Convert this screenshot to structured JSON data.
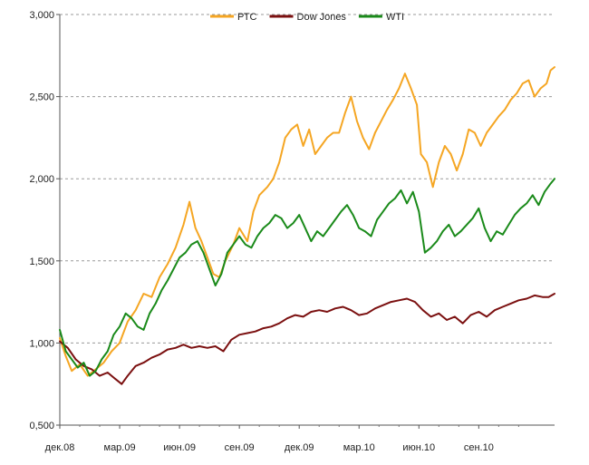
{
  "chart_data": {
    "type": "line",
    "title": "",
    "xlabel": "",
    "ylabel": "",
    "x_tick_labels": [
      "дек.08",
      "мар.09",
      "июн.09",
      "сен.09",
      "дек.09",
      "мар.10",
      "июн.10",
      "сен.10"
    ],
    "y_tick_labels": [
      "0,500",
      "1,000",
      "1,500",
      "2,000",
      "2,500",
      "3,000"
    ],
    "y_ticks": [
      0.5,
      1.0,
      1.5,
      2.0,
      2.5,
      3.0
    ],
    "ylim": [
      0.5,
      3.0
    ],
    "xlim": [
      0,
      24.8
    ],
    "grid": "horizontal-dashed",
    "legend_position": "top-center",
    "series": [
      {
        "name": "РТС",
        "color": "#F5A623",
        "points": [
          [
            0,
            1.03
          ],
          [
            0.3,
            0.92
          ],
          [
            0.6,
            0.83
          ],
          [
            1.0,
            0.87
          ],
          [
            1.4,
            0.8
          ],
          [
            1.8,
            0.84
          ],
          [
            2.2,
            0.88
          ],
          [
            2.6,
            0.95
          ],
          [
            3.0,
            1.0
          ],
          [
            3.4,
            1.13
          ],
          [
            3.8,
            1.2
          ],
          [
            4.2,
            1.3
          ],
          [
            4.6,
            1.28
          ],
          [
            5.0,
            1.4
          ],
          [
            5.4,
            1.48
          ],
          [
            5.8,
            1.58
          ],
          [
            6.2,
            1.72
          ],
          [
            6.5,
            1.86
          ],
          [
            6.8,
            1.7
          ],
          [
            7.1,
            1.62
          ],
          [
            7.4,
            1.52
          ],
          [
            7.7,
            1.42
          ],
          [
            8.0,
            1.4
          ],
          [
            8.3,
            1.5
          ],
          [
            8.7,
            1.6
          ],
          [
            9.0,
            1.7
          ],
          [
            9.4,
            1.62
          ],
          [
            9.7,
            1.8
          ],
          [
            10.0,
            1.9
          ],
          [
            10.4,
            1.95
          ],
          [
            10.7,
            2.0
          ],
          [
            11.0,
            2.1
          ],
          [
            11.3,
            2.25
          ],
          [
            11.6,
            2.3
          ],
          [
            11.9,
            2.33
          ],
          [
            12.2,
            2.2
          ],
          [
            12.5,
            2.3
          ],
          [
            12.8,
            2.15
          ],
          [
            13.1,
            2.2
          ],
          [
            13.4,
            2.25
          ],
          [
            13.7,
            2.28
          ],
          [
            14.0,
            2.28
          ],
          [
            14.3,
            2.4
          ],
          [
            14.6,
            2.5
          ],
          [
            14.9,
            2.35
          ],
          [
            15.2,
            2.25
          ],
          [
            15.5,
            2.18
          ],
          [
            15.8,
            2.28
          ],
          [
            16.1,
            2.35
          ],
          [
            16.4,
            2.42
          ],
          [
            16.7,
            2.48
          ],
          [
            17.0,
            2.55
          ],
          [
            17.3,
            2.64
          ],
          [
            17.6,
            2.55
          ],
          [
            17.9,
            2.45
          ],
          [
            18.1,
            2.15
          ],
          [
            18.4,
            2.1
          ],
          [
            18.7,
            1.95
          ],
          [
            19.0,
            2.1
          ],
          [
            19.3,
            2.2
          ],
          [
            19.6,
            2.15
          ],
          [
            19.9,
            2.05
          ],
          [
            20.2,
            2.15
          ],
          [
            20.5,
            2.3
          ],
          [
            20.8,
            2.28
          ],
          [
            21.1,
            2.2
          ],
          [
            21.4,
            2.28
          ],
          [
            21.7,
            2.33
          ],
          [
            22.0,
            2.38
          ],
          [
            22.3,
            2.42
          ],
          [
            22.6,
            2.48
          ],
          [
            22.9,
            2.52
          ],
          [
            23.2,
            2.58
          ],
          [
            23.5,
            2.6
          ],
          [
            23.8,
            2.5
          ],
          [
            24.1,
            2.55
          ],
          [
            24.4,
            2.58
          ],
          [
            24.6,
            2.66
          ],
          [
            24.8,
            2.68
          ]
        ]
      },
      {
        "name": "Dow Jones",
        "color": "#7B1010",
        "points": [
          [
            0,
            1.01
          ],
          [
            0.4,
            0.97
          ],
          [
            0.8,
            0.9
          ],
          [
            1.2,
            0.86
          ],
          [
            1.6,
            0.84
          ],
          [
            2.0,
            0.8
          ],
          [
            2.4,
            0.82
          ],
          [
            2.8,
            0.78
          ],
          [
            3.1,
            0.75
          ],
          [
            3.4,
            0.8
          ],
          [
            3.8,
            0.86
          ],
          [
            4.2,
            0.88
          ],
          [
            4.6,
            0.91
          ],
          [
            5.0,
            0.93
          ],
          [
            5.4,
            0.96
          ],
          [
            5.8,
            0.97
          ],
          [
            6.2,
            0.99
          ],
          [
            6.6,
            0.97
          ],
          [
            7.0,
            0.98
          ],
          [
            7.4,
            0.97
          ],
          [
            7.8,
            0.98
          ],
          [
            8.2,
            0.95
          ],
          [
            8.6,
            1.02
          ],
          [
            9.0,
            1.05
          ],
          [
            9.4,
            1.06
          ],
          [
            9.8,
            1.07
          ],
          [
            10.2,
            1.09
          ],
          [
            10.6,
            1.1
          ],
          [
            11.0,
            1.12
          ],
          [
            11.4,
            1.15
          ],
          [
            11.8,
            1.17
          ],
          [
            12.2,
            1.16
          ],
          [
            12.6,
            1.19
          ],
          [
            13.0,
            1.2
          ],
          [
            13.4,
            1.19
          ],
          [
            13.8,
            1.21
          ],
          [
            14.2,
            1.22
          ],
          [
            14.6,
            1.2
          ],
          [
            15.0,
            1.17
          ],
          [
            15.4,
            1.18
          ],
          [
            15.8,
            1.21
          ],
          [
            16.2,
            1.23
          ],
          [
            16.6,
            1.25
          ],
          [
            17.0,
            1.26
          ],
          [
            17.4,
            1.27
          ],
          [
            17.8,
            1.25
          ],
          [
            18.2,
            1.2
          ],
          [
            18.6,
            1.16
          ],
          [
            19.0,
            1.18
          ],
          [
            19.4,
            1.14
          ],
          [
            19.8,
            1.16
          ],
          [
            20.2,
            1.12
          ],
          [
            20.6,
            1.17
          ],
          [
            21.0,
            1.19
          ],
          [
            21.4,
            1.16
          ],
          [
            21.8,
            1.2
          ],
          [
            22.2,
            1.22
          ],
          [
            22.6,
            1.24
          ],
          [
            23.0,
            1.26
          ],
          [
            23.4,
            1.27
          ],
          [
            23.8,
            1.29
          ],
          [
            24.2,
            1.28
          ],
          [
            24.5,
            1.28
          ],
          [
            24.8,
            1.3
          ]
        ]
      },
      {
        "name": "WTI",
        "color": "#1A8A1A",
        "points": [
          [
            0,
            1.08
          ],
          [
            0.3,
            0.95
          ],
          [
            0.6,
            0.9
          ],
          [
            0.9,
            0.85
          ],
          [
            1.2,
            0.88
          ],
          [
            1.5,
            0.8
          ],
          [
            1.8,
            0.83
          ],
          [
            2.1,
            0.9
          ],
          [
            2.4,
            0.95
          ],
          [
            2.7,
            1.05
          ],
          [
            3.0,
            1.1
          ],
          [
            3.3,
            1.18
          ],
          [
            3.6,
            1.15
          ],
          [
            3.9,
            1.1
          ],
          [
            4.2,
            1.08
          ],
          [
            4.5,
            1.18
          ],
          [
            4.8,
            1.24
          ],
          [
            5.1,
            1.32
          ],
          [
            5.4,
            1.38
          ],
          [
            5.7,
            1.45
          ],
          [
            6.0,
            1.52
          ],
          [
            6.3,
            1.55
          ],
          [
            6.6,
            1.6
          ],
          [
            6.9,
            1.62
          ],
          [
            7.2,
            1.55
          ],
          [
            7.5,
            1.45
          ],
          [
            7.8,
            1.35
          ],
          [
            8.1,
            1.42
          ],
          [
            8.4,
            1.55
          ],
          [
            8.7,
            1.6
          ],
          [
            9.0,
            1.65
          ],
          [
            9.3,
            1.6
          ],
          [
            9.6,
            1.58
          ],
          [
            9.9,
            1.65
          ],
          [
            10.2,
            1.7
          ],
          [
            10.5,
            1.73
          ],
          [
            10.8,
            1.78
          ],
          [
            11.1,
            1.76
          ],
          [
            11.4,
            1.7
          ],
          [
            11.7,
            1.73
          ],
          [
            12.0,
            1.78
          ],
          [
            12.3,
            1.7
          ],
          [
            12.6,
            1.62
          ],
          [
            12.9,
            1.68
          ],
          [
            13.2,
            1.65
          ],
          [
            13.5,
            1.7
          ],
          [
            13.8,
            1.75
          ],
          [
            14.1,
            1.8
          ],
          [
            14.4,
            1.84
          ],
          [
            14.7,
            1.78
          ],
          [
            15.0,
            1.7
          ],
          [
            15.3,
            1.68
          ],
          [
            15.6,
            1.65
          ],
          [
            15.9,
            1.75
          ],
          [
            16.2,
            1.8
          ],
          [
            16.5,
            1.85
          ],
          [
            16.8,
            1.88
          ],
          [
            17.1,
            1.93
          ],
          [
            17.4,
            1.85
          ],
          [
            17.7,
            1.92
          ],
          [
            18.0,
            1.8
          ],
          [
            18.3,
            1.55
          ],
          [
            18.6,
            1.58
          ],
          [
            18.9,
            1.62
          ],
          [
            19.2,
            1.68
          ],
          [
            19.5,
            1.72
          ],
          [
            19.8,
            1.65
          ],
          [
            20.1,
            1.68
          ],
          [
            20.4,
            1.72
          ],
          [
            20.7,
            1.76
          ],
          [
            21.0,
            1.82
          ],
          [
            21.3,
            1.7
          ],
          [
            21.6,
            1.62
          ],
          [
            21.9,
            1.68
          ],
          [
            22.2,
            1.66
          ],
          [
            22.5,
            1.72
          ],
          [
            22.8,
            1.78
          ],
          [
            23.1,
            1.82
          ],
          [
            23.4,
            1.85
          ],
          [
            23.7,
            1.9
          ],
          [
            24.0,
            1.84
          ],
          [
            24.3,
            1.92
          ],
          [
            24.6,
            1.97
          ],
          [
            24.8,
            2.0
          ]
        ]
      }
    ]
  }
}
